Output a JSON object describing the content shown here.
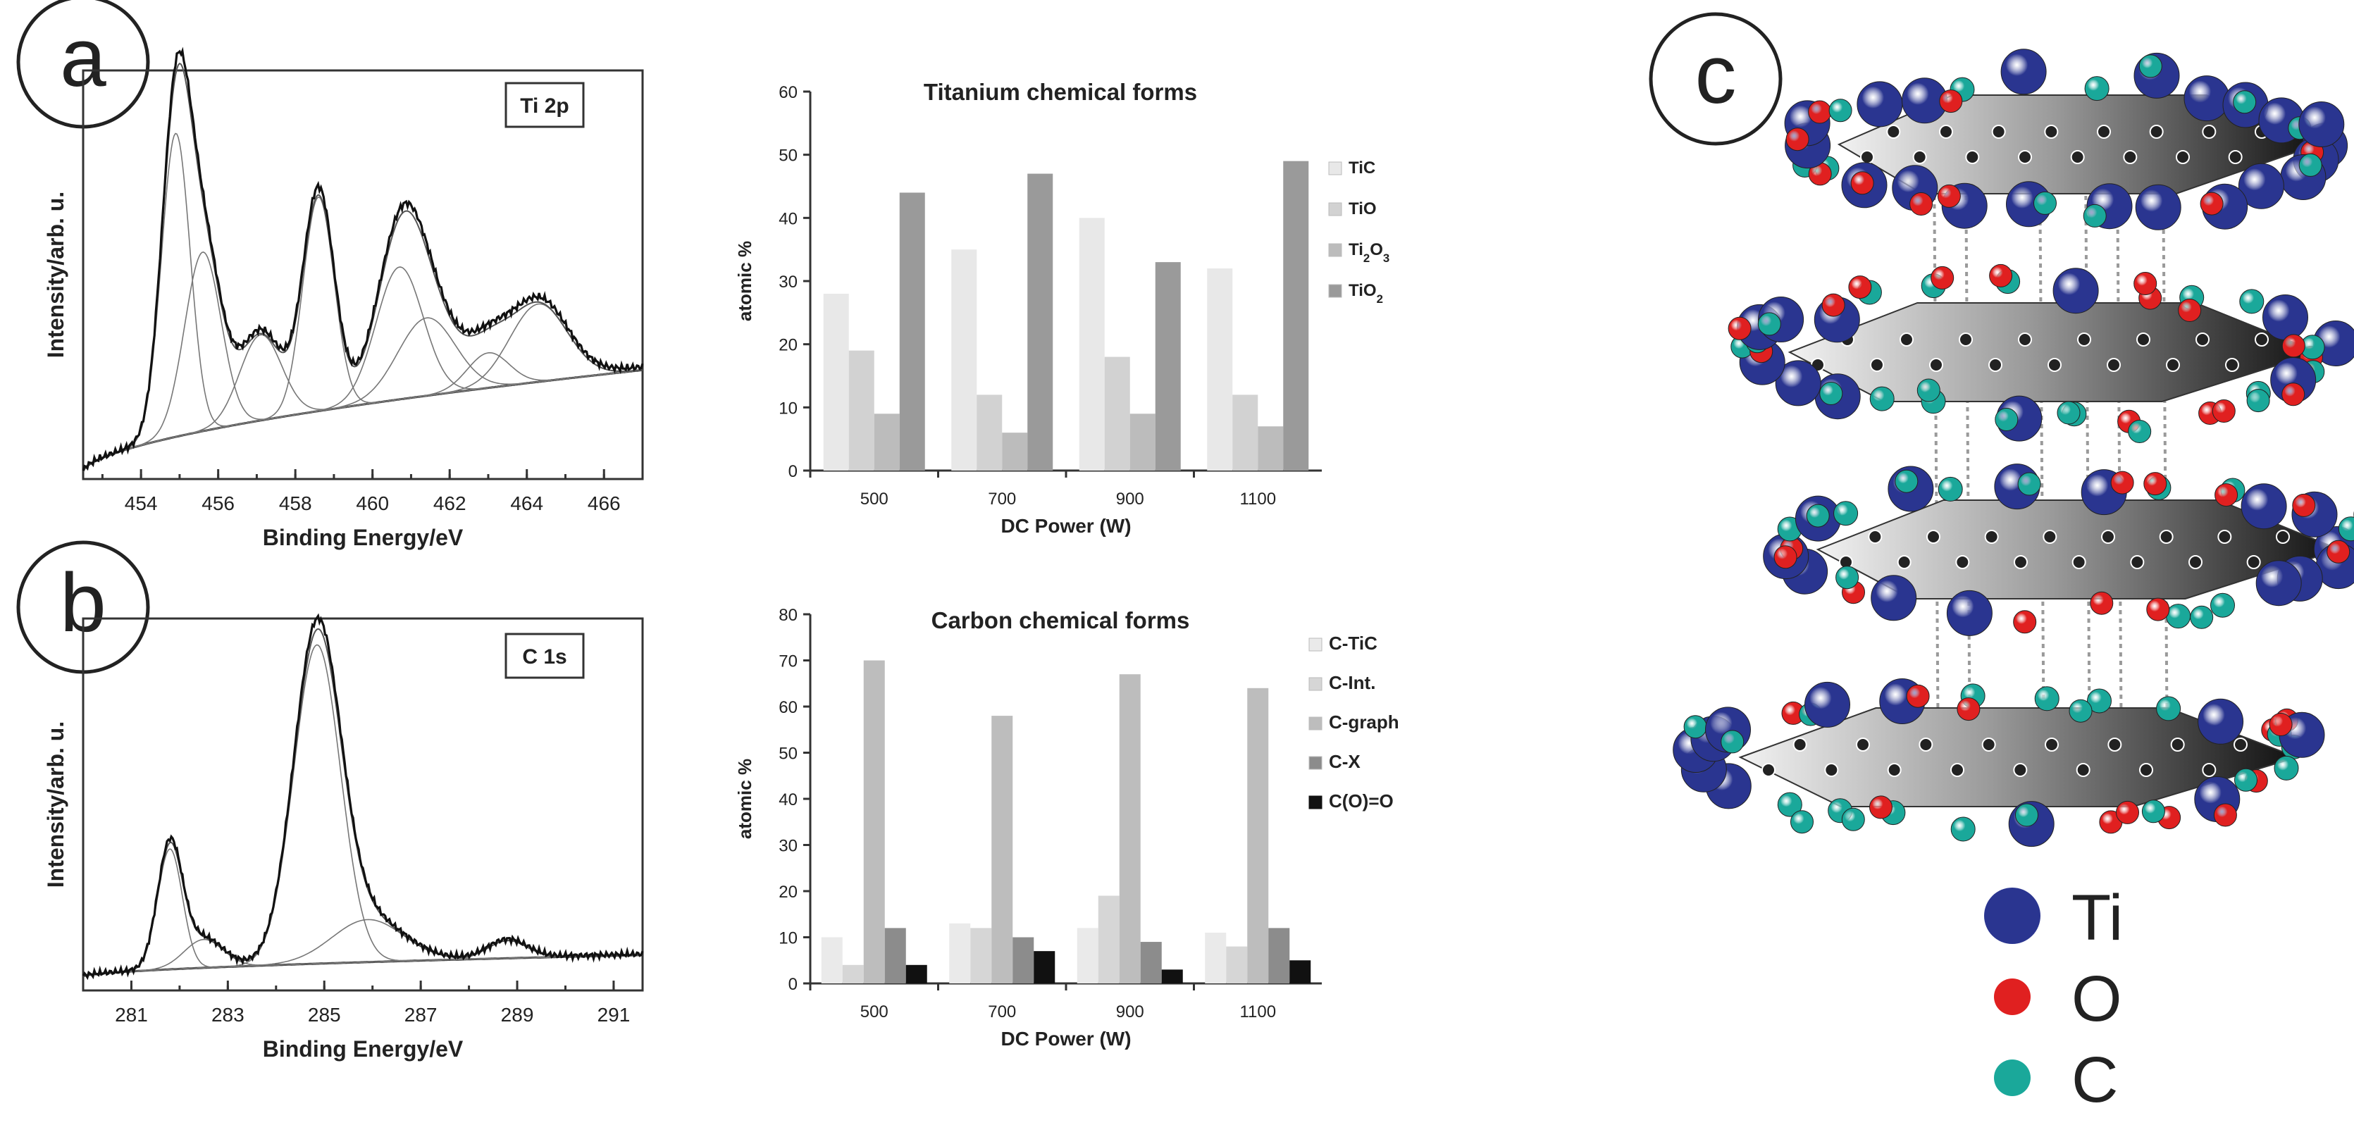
{
  "panels": {
    "a": {
      "letter": "a"
    },
    "b": {
      "letter": "b"
    },
    "c": {
      "letter": "c"
    }
  },
  "colors": {
    "ti": "#2a3590",
    "o": "#e02020",
    "c": "#1aa89a",
    "c_line": "#111111"
  },
  "legend_atoms": [
    {
      "symbol": "Ti",
      "color": "#2a3590"
    },
    {
      "symbol": "O",
      "color": "#e02020"
    },
    {
      "symbol": "C",
      "color": "#1aa89a"
    }
  ],
  "chart_data": [
    {
      "id": "ti2p",
      "type": "line",
      "title": "Ti 2p",
      "xlabel": "Binding Energy/eV",
      "ylabel": "Intensity/arb. u.",
      "xlim": [
        452.5,
        467
      ],
      "ylim": [
        0,
        1.05
      ],
      "xticks": [
        "454",
        "456",
        "458",
        "460",
        "462",
        "464",
        "466"
      ],
      "peaks": [
        {
          "center": 454.9,
          "height": 0.78,
          "width": 0.55
        },
        {
          "center": 455.6,
          "height": 0.46,
          "width": 0.7
        },
        {
          "center": 457.1,
          "height": 0.22,
          "width": 0.8
        },
        {
          "center": 458.6,
          "height": 0.55,
          "width": 0.6
        },
        {
          "center": 460.7,
          "height": 0.34,
          "width": 0.9
        },
        {
          "center": 461.4,
          "height": 0.2,
          "width": 1.1
        },
        {
          "center": 463.0,
          "height": 0.09,
          "width": 0.8
        },
        {
          "center": 464.3,
          "height": 0.2,
          "width": 1.1
        }
      ],
      "background": {
        "start": 0.02,
        "end": 0.28
      }
    },
    {
      "id": "c1s",
      "type": "line",
      "title": "C 1s",
      "xlabel": "Binding Energy/eV",
      "ylabel": "Intensity/arb. u.",
      "xlim": [
        280,
        291.6
      ],
      "ylim": [
        0,
        1.05
      ],
      "xticks": [
        "281",
        "283",
        "285",
        "287",
        "289",
        "291"
      ],
      "peaks": [
        {
          "center": 281.8,
          "height": 0.34,
          "width": 0.38
        },
        {
          "center": 282.5,
          "height": 0.08,
          "width": 0.6
        },
        {
          "center": 284.85,
          "height": 0.9,
          "width": 0.72
        },
        {
          "center": 285.9,
          "height": 0.12,
          "width": 1.1
        },
        {
          "center": 288.8,
          "height": 0.05,
          "width": 0.6
        }
      ],
      "background": {
        "start": 0.04,
        "end": 0.1
      }
    },
    {
      "id": "ti_forms",
      "type": "bar",
      "title": "Titanium chemical forms",
      "xlabel": "DC Power (W)",
      "ylabel": "atomic %",
      "categories": [
        "500",
        "700",
        "900",
        "1100"
      ],
      "ylim": [
        0,
        60
      ],
      "yticks": [
        "0",
        "10",
        "20",
        "30",
        "40",
        "50",
        "60"
      ],
      "series": [
        {
          "name": "TiC",
          "sub": "",
          "rest": "",
          "color": "#e8e8e8",
          "values": [
            28,
            35,
            40,
            32
          ]
        },
        {
          "name": "TiO",
          "sub": "",
          "rest": "",
          "color": "#d2d2d2",
          "values": [
            19,
            12,
            18,
            12
          ]
        },
        {
          "name": "Ti",
          "sub": "2",
          "rest": "O",
          "sub2": "3",
          "color": "#bcbcbc",
          "values": [
            9,
            6,
            9,
            7
          ]
        },
        {
          "name": "TiO",
          "sub": "2",
          "rest": "",
          "color": "#9a9a9a",
          "values": [
            44,
            47,
            33,
            49
          ]
        }
      ]
    },
    {
      "id": "c_forms",
      "type": "bar",
      "title": "Carbon chemical forms",
      "xlabel": "DC Power (W)",
      "ylabel": "atomic %",
      "categories": [
        "500",
        "700",
        "900",
        "1100"
      ],
      "ylim": [
        0,
        80
      ],
      "yticks": [
        "0",
        "10",
        "20",
        "30",
        "40",
        "50",
        "60",
        "70",
        "80"
      ],
      "series": [
        {
          "name": "C-TiC",
          "color": "#eaeaea",
          "values": [
            10,
            13,
            12,
            11
          ]
        },
        {
          "name": "C-Int.",
          "color": "#d6d6d6",
          "values": [
            4,
            12,
            19,
            8
          ]
        },
        {
          "name": "C-graph",
          "color": "#bdbdbd",
          "values": [
            70,
            58,
            67,
            64
          ]
        },
        {
          "name": "C-X",
          "color": "#8c8c8c",
          "values": [
            12,
            10,
            9,
            12
          ]
        },
        {
          "name": "C(O)=O",
          "color": "#111111",
          "values": [
            4,
            7,
            3,
            5
          ]
        }
      ]
    }
  ]
}
